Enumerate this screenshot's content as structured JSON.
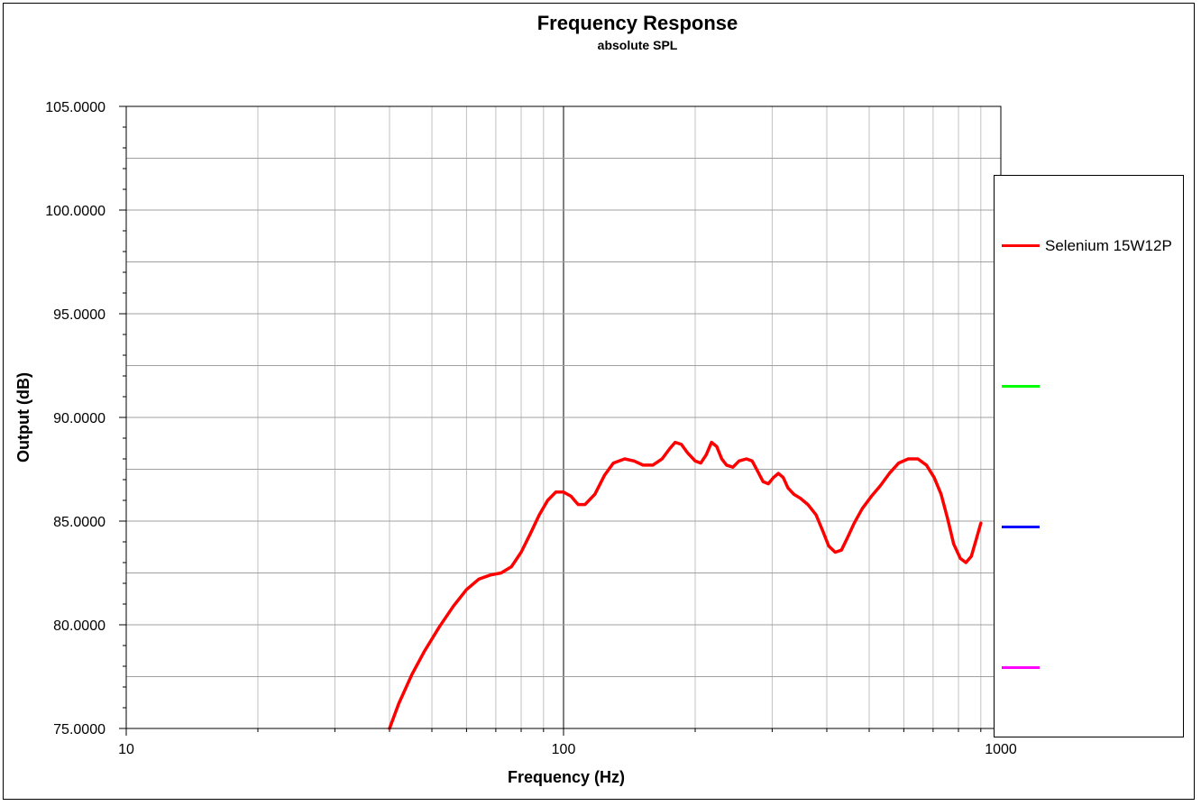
{
  "chart_data": {
    "type": "line",
    "title": "Frequency Response",
    "subtitle": "absolute SPL",
    "xlabel": "Frequency (Hz)",
    "ylabel": "Output (dB)",
    "xscale": "log",
    "xlim": [
      10,
      1000
    ],
    "ylim": [
      75,
      105
    ],
    "x_ticks": [
      "10",
      "100",
      "1000"
    ],
    "y_ticks": [
      "75.0000",
      "80.0000",
      "85.0000",
      "90.0000",
      "95.0000",
      "100.0000",
      "105.0000"
    ],
    "grid": true,
    "legend_position": "right",
    "series": [
      {
        "name": "Selenium 15W12P",
        "color": "#ff0000",
        "points": [
          [
            40,
            75.0
          ],
          [
            42,
            76.2
          ],
          [
            45,
            77.6
          ],
          [
            48,
            78.7
          ],
          [
            52,
            79.9
          ],
          [
            56,
            80.9
          ],
          [
            60,
            81.7
          ],
          [
            64,
            82.2
          ],
          [
            68,
            82.4
          ],
          [
            72,
            82.5
          ],
          [
            76,
            82.8
          ],
          [
            80,
            83.5
          ],
          [
            84,
            84.4
          ],
          [
            88,
            85.3
          ],
          [
            92,
            86.0
          ],
          [
            96,
            86.4
          ],
          [
            100,
            86.4
          ],
          [
            104,
            86.2
          ],
          [
            108,
            85.8
          ],
          [
            112,
            85.8
          ],
          [
            118,
            86.3
          ],
          [
            124,
            87.2
          ],
          [
            130,
            87.8
          ],
          [
            138,
            88.0
          ],
          [
            145,
            87.9
          ],
          [
            152,
            87.7
          ],
          [
            160,
            87.7
          ],
          [
            168,
            88.0
          ],
          [
            175,
            88.5
          ],
          [
            180,
            88.8
          ],
          [
            186,
            88.7
          ],
          [
            192,
            88.3
          ],
          [
            200,
            87.9
          ],
          [
            206,
            87.8
          ],
          [
            212,
            88.2
          ],
          [
            218,
            88.8
          ],
          [
            224,
            88.6
          ],
          [
            230,
            88.0
          ],
          [
            236,
            87.7
          ],
          [
            244,
            87.6
          ],
          [
            252,
            87.9
          ],
          [
            262,
            88.0
          ],
          [
            270,
            87.9
          ],
          [
            278,
            87.4
          ],
          [
            286,
            86.9
          ],
          [
            294,
            86.8
          ],
          [
            302,
            87.1
          ],
          [
            310,
            87.3
          ],
          [
            318,
            87.1
          ],
          [
            326,
            86.6
          ],
          [
            336,
            86.3
          ],
          [
            348,
            86.1
          ],
          [
            362,
            85.8
          ],
          [
            378,
            85.3
          ],
          [
            392,
            84.5
          ],
          [
            404,
            83.8
          ],
          [
            418,
            83.5
          ],
          [
            432,
            83.6
          ],
          [
            446,
            84.2
          ],
          [
            462,
            84.9
          ],
          [
            482,
            85.6
          ],
          [
            506,
            86.2
          ],
          [
            530,
            86.7
          ],
          [
            556,
            87.3
          ],
          [
            584,
            87.8
          ],
          [
            614,
            88.0
          ],
          [
            646,
            88.0
          ],
          [
            676,
            87.7
          ],
          [
            704,
            87.1
          ],
          [
            730,
            86.3
          ],
          [
            756,
            85.1
          ],
          [
            780,
            83.9
          ],
          [
            808,
            83.2
          ],
          [
            832,
            83.0
          ],
          [
            856,
            83.3
          ],
          [
            878,
            84.1
          ],
          [
            900,
            84.9
          ]
        ]
      },
      {
        "name": "",
        "color": "#00ff00",
        "points": []
      },
      {
        "name": "",
        "color": "#0000ff",
        "points": []
      },
      {
        "name": "",
        "color": "#ff00ff",
        "points": []
      }
    ]
  }
}
